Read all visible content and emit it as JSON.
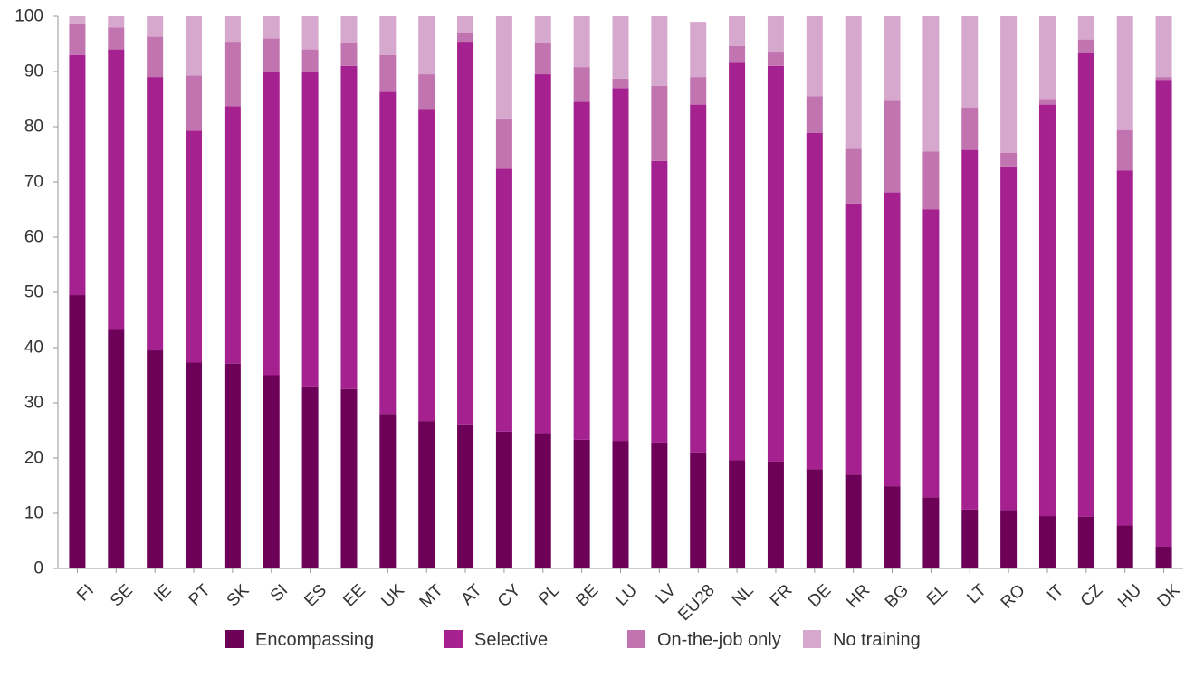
{
  "chart_data": {
    "type": "bar",
    "stacked": true,
    "title": "",
    "xlabel": "",
    "ylabel": "",
    "ylim": [
      0,
      100
    ],
    "yticks": [
      0,
      10,
      20,
      30,
      40,
      50,
      60,
      70,
      80,
      90,
      100
    ],
    "grid": false,
    "legend_position": "bottom",
    "categories": [
      "FI",
      "SE",
      "IE",
      "PT",
      "SK",
      "SI",
      "ES",
      "EE",
      "UK",
      "MT",
      "AT",
      "CY",
      "PL",
      "BE",
      "LU",
      "LV",
      "EU28",
      "NL",
      "FR",
      "DE",
      "HR",
      "BG",
      "EL",
      "LT",
      "RO",
      "IT",
      "CZ",
      "HU",
      "DK"
    ],
    "series": [
      {
        "name": "Encompassing",
        "color": "#6d0057",
        "values": [
          49.5,
          43.2,
          39.5,
          37.3,
          37.1,
          35,
          33,
          32.5,
          28,
          26.7,
          26.1,
          24.8,
          24.5,
          23.3,
          23.1,
          22.8,
          21,
          19.6,
          19.4,
          18,
          17,
          14.9,
          12.9,
          10.7,
          10.6,
          9.5,
          9.4,
          7.8,
          4
        ]
      },
      {
        "name": "Selective",
        "color": "#a5218f",
        "values": [
          43.5,
          50.8,
          49.5,
          42,
          46.6,
          55,
          57,
          58.5,
          58.3,
          56.5,
          69.3,
          47.6,
          65,
          61.2,
          63.9,
          51,
          63,
          72,
          71.6,
          60.9,
          49.1,
          53.2,
          52.1,
          65.1,
          62.2,
          74.5,
          83.9,
          64.3,
          84.5
        ]
      },
      {
        "name": "On-the-job only",
        "color": "#c274b0",
        "values": [
          5.7,
          4,
          7.3,
          10,
          11.7,
          6,
          4,
          4.3,
          6.7,
          6.3,
          1.6,
          9.1,
          5.6,
          6.3,
          1.7,
          13.6,
          5,
          3,
          2.6,
          6.6,
          9.9,
          16.6,
          10.5,
          7.7,
          2.5,
          1,
          2.5,
          7.3,
          0.5
        ]
      },
      {
        "name": "No training",
        "color": "#d7a8cd",
        "values": [
          1.3,
          2,
          3.7,
          10.7,
          4.6,
          4,
          6,
          4.7,
          7,
          10.5,
          3,
          18.5,
          4.9,
          9.2,
          11.3,
          12.6,
          10,
          5.4,
          6.4,
          14.5,
          24,
          15.3,
          24.5,
          16.5,
          24.7,
          15,
          4.2,
          20.6,
          11
        ]
      }
    ]
  }
}
